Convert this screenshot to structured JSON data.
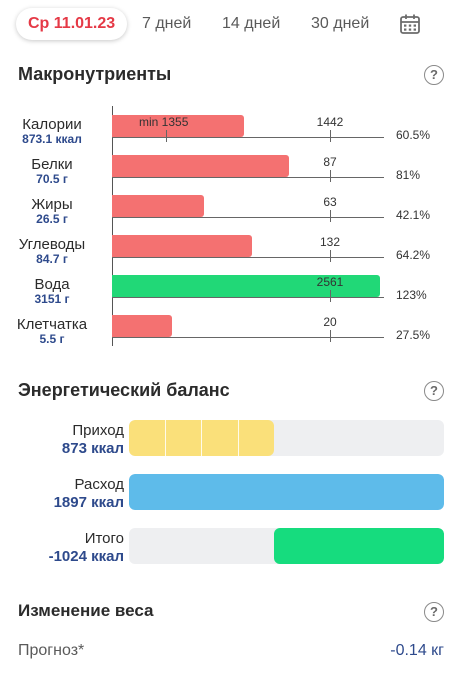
{
  "tabs": {
    "active": "Ср 11.01.23",
    "days7": "7 дней",
    "days14": "14 дней",
    "days30": "30 дней"
  },
  "macros": {
    "title": "Макронутриенты",
    "min_label": "min 1355",
    "rows": [
      {
        "name": "Калории",
        "value": "873.1 ккал",
        "norm": "1442",
        "percent": "60.5%",
        "fraction": 0.605,
        "color": "#f47171"
      },
      {
        "name": "Белки",
        "value": "70.5 г",
        "norm": "87",
        "percent": "81%",
        "fraction": 0.81,
        "color": "#f47171"
      },
      {
        "name": "Жиры",
        "value": "26.5 г",
        "norm": "63",
        "percent": "42.1%",
        "fraction": 0.421,
        "color": "#f47171"
      },
      {
        "name": "Углеводы",
        "value": "84.7 г",
        "norm": "132",
        "percent": "64.2%",
        "fraction": 0.642,
        "color": "#f47171"
      },
      {
        "name": "Вода",
        "value": "3151 г",
        "norm": "2561",
        "percent": "123%",
        "fraction": 1.23,
        "color": "#21d877"
      },
      {
        "name": "Клетчатка",
        "value": "5.5 г",
        "norm": "20",
        "percent": "27.5%",
        "fraction": 0.275,
        "color": "#f47171"
      }
    ]
  },
  "energy": {
    "title": "Энергетический баланс",
    "rows": [
      {
        "label": "Приход",
        "value": "873 ккал",
        "start": 0,
        "fraction": 0.46,
        "color": "#fae07a",
        "segments": 4
      },
      {
        "label": "Расход",
        "value": "1897 ккал",
        "start": 0,
        "fraction": 1.0,
        "color": "#5ebbea",
        "segments": 0
      },
      {
        "label": "Итого",
        "value": "-1024 ккал",
        "start": 0.46,
        "fraction": 0.54,
        "color": "#16dc7e",
        "segments": 0
      }
    ]
  },
  "weight": {
    "title": "Изменение веса",
    "forecast_label": "Прогноз*",
    "forecast_value": "-0.14 кг"
  }
}
